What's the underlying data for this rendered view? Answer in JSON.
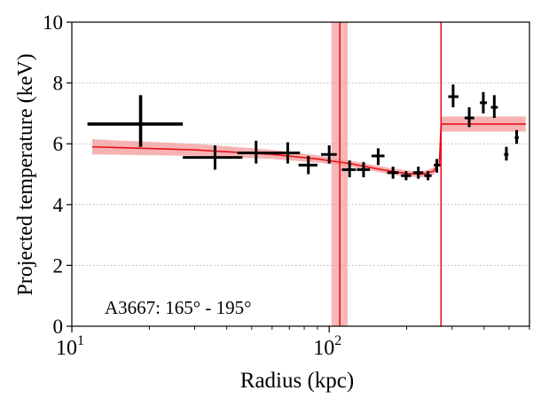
{
  "chart_data": {
    "type": "scatter",
    "annotation": "A3667: 165° - 195°",
    "xlabel": "Radius (kpc)",
    "ylabel": "Projected temperature (keV)",
    "x_scale": "log",
    "xlim": [
      10,
      600
    ],
    "ylim": [
      0,
      10
    ],
    "x_ticks": [
      {
        "value": 10,
        "base": "10",
        "exp": "1"
      },
      {
        "value": 100,
        "base": "10",
        "exp": "2"
      }
    ],
    "y_ticks": [
      0,
      2,
      4,
      6,
      8,
      10
    ],
    "grid": {
      "y": true,
      "x": false,
      "style": "dotted"
    },
    "points": [
      {
        "x": 18.5,
        "xlo": 11.5,
        "xhi": 27,
        "y": 6.65,
        "ylo": 5.9,
        "yhi": 7.6,
        "big": true
      },
      {
        "x": 36,
        "xlo": 27,
        "xhi": 46,
        "y": 5.55,
        "ylo": 5.15,
        "yhi": 5.95
      },
      {
        "x": 52,
        "xlo": 44,
        "xhi": 60,
        "y": 5.7,
        "ylo": 5.35,
        "yhi": 6.1
      },
      {
        "x": 69,
        "xlo": 60,
        "xhi": 77,
        "y": 5.7,
        "ylo": 5.35,
        "yhi": 6.05
      },
      {
        "x": 83,
        "xlo": 76,
        "xhi": 90,
        "y": 5.3,
        "ylo": 5.0,
        "yhi": 5.6
      },
      {
        "x": 100,
        "xlo": 93,
        "xhi": 107,
        "y": 5.65,
        "ylo": 5.35,
        "yhi": 5.95
      },
      {
        "x": 120,
        "xlo": 112,
        "xhi": 127,
        "y": 5.15,
        "ylo": 4.9,
        "yhi": 5.45
      },
      {
        "x": 136,
        "xlo": 128,
        "xhi": 144,
        "y": 5.15,
        "ylo": 4.9,
        "yhi": 5.4
      },
      {
        "x": 155,
        "xlo": 146,
        "xhi": 164,
        "y": 5.6,
        "ylo": 5.3,
        "yhi": 5.85
      },
      {
        "x": 177,
        "xlo": 168,
        "xhi": 186,
        "y": 5.05,
        "ylo": 4.85,
        "yhi": 5.25
      },
      {
        "x": 199,
        "xlo": 190,
        "xhi": 208,
        "y": 4.95,
        "ylo": 4.8,
        "yhi": 5.1
      },
      {
        "x": 222,
        "xlo": 212,
        "xhi": 232,
        "y": 5.05,
        "ylo": 4.85,
        "yhi": 5.25
      },
      {
        "x": 242,
        "xlo": 234,
        "xhi": 250,
        "y": 4.95,
        "ylo": 4.8,
        "yhi": 5.1
      },
      {
        "x": 262,
        "xlo": 255,
        "xhi": 270,
        "y": 5.3,
        "ylo": 5.05,
        "yhi": 5.5
      },
      {
        "x": 303,
        "xlo": 290,
        "xhi": 318,
        "y": 7.55,
        "ylo": 7.2,
        "yhi": 7.95
      },
      {
        "x": 350,
        "xlo": 336,
        "xhi": 366,
        "y": 6.85,
        "ylo": 6.55,
        "yhi": 7.2
      },
      {
        "x": 397,
        "xlo": 385,
        "xhi": 410,
        "y": 7.35,
        "ylo": 7.0,
        "yhi": 7.7
      },
      {
        "x": 438,
        "xlo": 425,
        "xhi": 452,
        "y": 7.2,
        "ylo": 6.85,
        "yhi": 7.6
      },
      {
        "x": 488,
        "xlo": 478,
        "xhi": 497,
        "y": 5.65,
        "ylo": 5.45,
        "yhi": 5.9
      },
      {
        "x": 535,
        "xlo": 526,
        "xhi": 545,
        "y": 6.2,
        "ylo": 6.0,
        "yhi": 6.45
      }
    ],
    "model_inner": {
      "x": [
        12,
        30,
        60,
        90,
        120,
        160,
        200,
        230,
        255,
        265
      ],
      "y": [
        5.9,
        5.8,
        5.65,
        5.5,
        5.35,
        5.15,
        5.02,
        5.0,
        5.1,
        5.35
      ],
      "band": [
        0.25,
        0.2,
        0.15,
        0.12,
        0.1,
        0.1,
        0.1,
        0.1,
        0.12,
        0.12
      ]
    },
    "model_outer": {
      "x": [
        272,
        580
      ],
      "y": [
        6.65,
        6.65
      ],
      "band": [
        0.25,
        0.25
      ]
    },
    "model_jump": {
      "x": 268,
      "y_from": 5.35,
      "y_to": 6.65
    },
    "vlines": [
      {
        "x": 110,
        "band": [
          102,
          118
        ]
      },
      {
        "x": 272
      }
    ],
    "colors": {
      "points": "#000000",
      "model": "#e8101a",
      "band": "#f4a0a0",
      "grid": "#b0b0b0"
    }
  }
}
